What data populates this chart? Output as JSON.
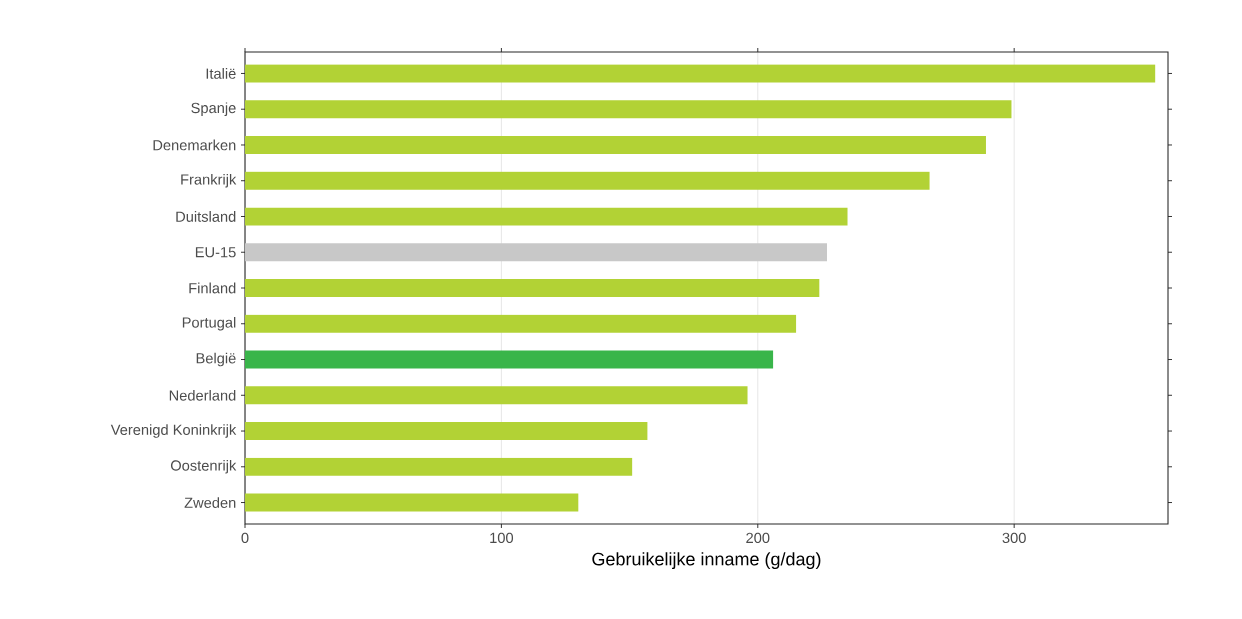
{
  "chart_data": {
    "type": "bar",
    "orientation": "horizontal",
    "categories": [
      "Italië",
      "Spanje",
      "Denemarken",
      "Frankrijk",
      "Duitsland",
      "EU-15",
      "Finland",
      "Portugal",
      "België",
      "Nederland",
      "Verenigd Koninkrijk",
      "Oostenrijk",
      "Zweden"
    ],
    "values": [
      355,
      299,
      289,
      267,
      235,
      227,
      224,
      215,
      206,
      196,
      157,
      151,
      130
    ],
    "colors": [
      "#b2d235",
      "#b2d235",
      "#b2d235",
      "#b2d235",
      "#b2d235",
      "#c8c8c8",
      "#b2d235",
      "#b2d235",
      "#39b54a",
      "#b2d235",
      "#b2d235",
      "#b2d235",
      "#b2d235"
    ],
    "xlim": [
      0,
      360
    ],
    "xticks": [
      0,
      100,
      200,
      300
    ],
    "xlabel": "Gebruikelijke inname (g/dag)",
    "grid": "x"
  }
}
